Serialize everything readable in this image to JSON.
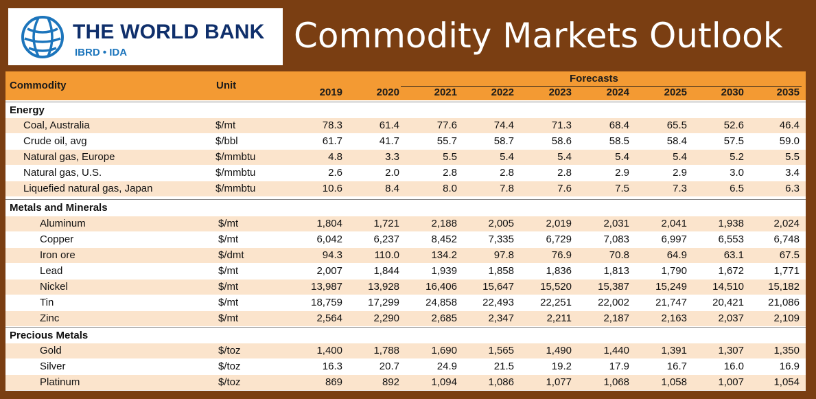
{
  "header": {
    "logo_name": "THE WORLD BANK",
    "logo_sub": "IBRD • IDA",
    "title": "Commodity Markets Outlook"
  },
  "table": {
    "col_commodity": "Commodity",
    "col_unit": "Unit",
    "forecasts_label": "Forecasts",
    "years": [
      "2019",
      "2020",
      "2021",
      "2022",
      "2023",
      "2024",
      "2025",
      "2030",
      "2035"
    ],
    "sections": [
      {
        "title": "Energy",
        "rows": [
          {
            "name": "Coal, Australia",
            "unit": "$/mt",
            "values": [
              "78.3",
              "61.4",
              "77.6",
              "74.4",
              "71.3",
              "68.4",
              "65.5",
              "52.6",
              "46.4"
            ]
          },
          {
            "name": "Crude oil, avg",
            "unit": "$/bbl",
            "values": [
              "61.7",
              "41.7",
              "55.7",
              "58.7",
              "58.6",
              "58.5",
              "58.4",
              "57.5",
              "59.0"
            ]
          },
          {
            "name": "Natural gas, Europe",
            "unit": "$/mmbtu",
            "values": [
              "4.8",
              "3.3",
              "5.5",
              "5.4",
              "5.4",
              "5.4",
              "5.4",
              "5.2",
              "5.5"
            ]
          },
          {
            "name": "Natural gas, U.S.",
            "unit": "$/mmbtu",
            "values": [
              "2.6",
              "2.0",
              "2.8",
              "2.8",
              "2.8",
              "2.9",
              "2.9",
              "3.0",
              "3.4"
            ]
          },
          {
            "name": "Liquefied natural gas, Japan",
            "unit": "$/mmbtu",
            "values": [
              "10.6",
              "8.4",
              "8.0",
              "7.8",
              "7.6",
              "7.5",
              "7.3",
              "6.5",
              "6.3"
            ]
          }
        ]
      },
      {
        "title": "Metals and Minerals",
        "rows": [
          {
            "name": "Aluminum",
            "unit": "$/mt",
            "values": [
              "1,804",
              "1,721",
              "2,188",
              "2,005",
              "2,019",
              "2,031",
              "2,041",
              "1,938",
              "2,024"
            ]
          },
          {
            "name": "Copper",
            "unit": "$/mt",
            "values": [
              "6,042",
              "6,237",
              "8,452",
              "7,335",
              "6,729",
              "7,083",
              "6,997",
              "6,553",
              "6,748"
            ]
          },
          {
            "name": "Iron ore",
            "unit": "$/dmt",
            "values": [
              "94.3",
              "110.0",
              "134.2",
              "97.8",
              "76.9",
              "70.8",
              "64.9",
              "63.1",
              "67.5"
            ]
          },
          {
            "name": "Lead",
            "unit": "$/mt",
            "values": [
              "2,007",
              "1,844",
              "1,939",
              "1,858",
              "1,836",
              "1,813",
              "1,790",
              "1,672",
              "1,771"
            ]
          },
          {
            "name": "Nickel",
            "unit": "$/mt",
            "values": [
              "13,987",
              "13,928",
              "16,406",
              "15,647",
              "15,520",
              "15,387",
              "15,249",
              "14,510",
              "15,182"
            ]
          },
          {
            "name": "Tin",
            "unit": "$/mt",
            "values": [
              "18,759",
              "17,299",
              "24,858",
              "22,493",
              "22,251",
              "22,002",
              "21,747",
              "20,421",
              "21,086"
            ]
          },
          {
            "name": "Zinc",
            "unit": "$/mt",
            "values": [
              "2,564",
              "2,290",
              "2,685",
              "2,347",
              "2,211",
              "2,187",
              "2,163",
              "2,037",
              "2,109"
            ]
          }
        ]
      },
      {
        "title": "Precious Metals",
        "rows": [
          {
            "name": "Gold",
            "unit": "$/toz",
            "values": [
              "1,400",
              "1,788",
              "1,690",
              "1,565",
              "1,490",
              "1,440",
              "1,391",
              "1,307",
              "1,350"
            ]
          },
          {
            "name": "Silver",
            "unit": "$/toz",
            "values": [
              "16.3",
              "20.7",
              "24.9",
              "21.5",
              "19.2",
              "17.9",
              "16.7",
              "16.0",
              "16.9"
            ]
          },
          {
            "name": "Platinum",
            "unit": "$/toz",
            "values": [
              "869",
              "892",
              "1,094",
              "1,086",
              "1,077",
              "1,068",
              "1,058",
              "1,007",
              "1,054"
            ]
          }
        ]
      }
    ]
  }
}
